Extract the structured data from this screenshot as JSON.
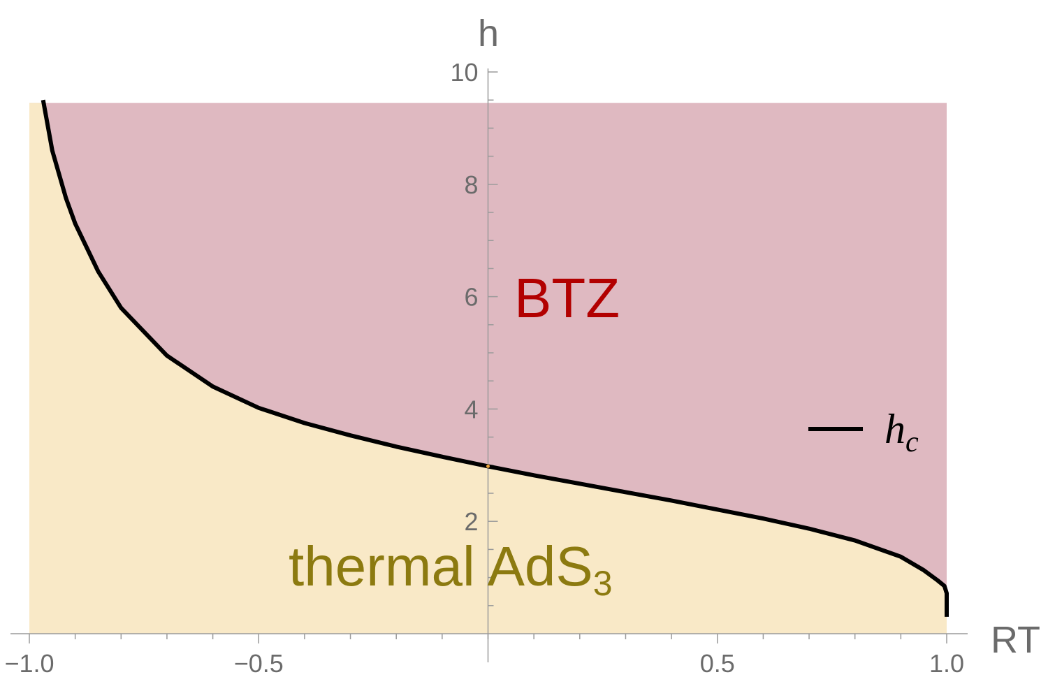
{
  "chart_data": {
    "type": "area",
    "x_axis": {
      "label": "RT",
      "range": [
        -1.05,
        1.05
      ],
      "major_ticks": [
        -1.0,
        -0.5,
        0.5,
        1.0
      ],
      "tick_labels": [
        "-1.0",
        "-0.5",
        "0.5",
        "1.0"
      ],
      "minor_step": 0.1
    },
    "y_axis": {
      "label": "h",
      "range": [
        0,
        10
      ],
      "major_ticks": [
        2,
        4,
        6,
        8,
        10
      ],
      "tick_labels": [
        "2",
        "4",
        "6",
        "8",
        "10"
      ],
      "minor_step": 0.5
    },
    "shaded_x_range": [
      -1.0,
      1.0
    ],
    "shaded_y_max": 9.45,
    "regions": [
      {
        "label": "BTZ",
        "position": "above curve",
        "color": "#dfb9c1",
        "text_color": "#b20000"
      },
      {
        "label": "thermal AdS",
        "subscript": "3",
        "position": "below curve",
        "color": "#f9e9c7",
        "text_color": "#8c7a10"
      }
    ],
    "series": [
      {
        "name": "h",
        "subscript": "c",
        "color": "#000000",
        "x": [
          -0.97,
          -0.95,
          -0.92,
          -0.9,
          -0.85,
          -0.8,
          -0.7,
          -0.6,
          -0.5,
          -0.4,
          -0.3,
          -0.2,
          -0.1,
          0.0,
          0.1,
          0.2,
          0.3,
          0.4,
          0.5,
          0.6,
          0.7,
          0.8,
          0.9,
          0.95,
          0.98,
          0.995,
          1.0,
          1.0
        ],
        "y": [
          9.5,
          8.6,
          7.75,
          7.3,
          6.45,
          5.8,
          4.95,
          4.4,
          4.02,
          3.75,
          3.53,
          3.33,
          3.15,
          2.98,
          2.82,
          2.67,
          2.52,
          2.37,
          2.21,
          2.05,
          1.87,
          1.66,
          1.37,
          1.13,
          0.95,
          0.85,
          0.72,
          0.3
        ]
      }
    ],
    "legend": {
      "placement": "right",
      "label": "h",
      "subscript": "c"
    },
    "marker_color": "#e8a33c",
    "grid": false
  }
}
